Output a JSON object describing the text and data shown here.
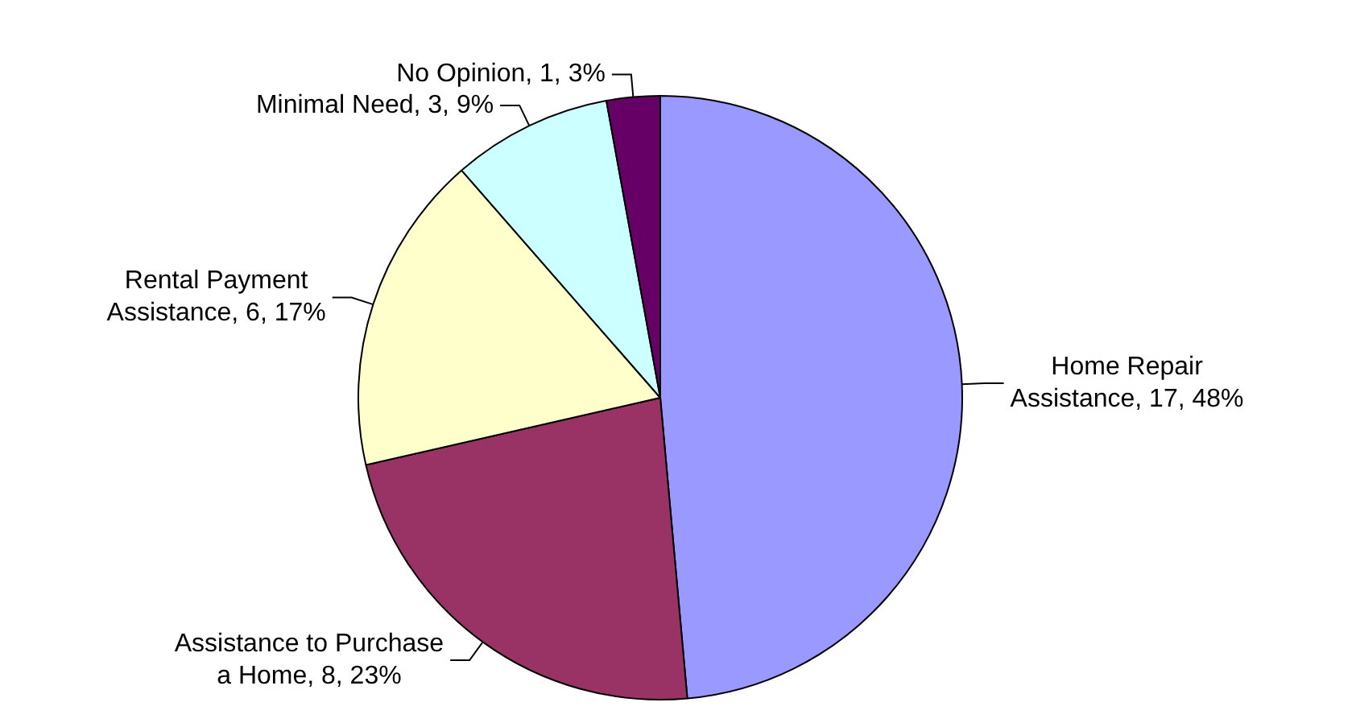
{
  "chart_data": {
    "type": "pie",
    "categories": [
      "Home Repair Assistance, 17, 48%",
      "Assistance to Purchase a Home, 8, 23%",
      "Rental Payment Assistance, 6, 17%",
      "Minimal Need, 3, 9%",
      "No Opinion, 1, 3%"
    ],
    "values": [
      17,
      8,
      6,
      3,
      1
    ],
    "colors": [
      "#9999ff",
      "#993366",
      "#ffffcc",
      "#ccffff",
      "#660066"
    ],
    "legend": false
  }
}
